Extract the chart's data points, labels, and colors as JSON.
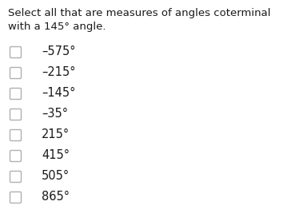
{
  "title_line1": "Select all that are measures of angles coterminal",
  "title_line2": "with a 145° angle.",
  "options": [
    "–575°",
    "–215°",
    "–145°",
    "–35°",
    "215°",
    "415°",
    "505°",
    "865°"
  ],
  "background_color": "#ffffff",
  "text_color": "#1a1a1a",
  "checkbox_edge_color": "#b0b0b0",
  "title_fontsize": 9.5,
  "option_fontsize": 10.5,
  "figsize": [
    3.74,
    2.77
  ],
  "dpi": 100
}
